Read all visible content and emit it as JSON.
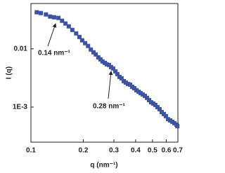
{
  "chart_data": {
    "type": "scatter",
    "x_label": "q (nm⁻¹)",
    "y_label": "I (q)",
    "annotations": [
      "0.14 nm⁻¹",
      "0.28 nm⁻¹"
    ],
    "xscale": "log",
    "yscale": "log",
    "xlim": [
      0.1,
      0.7
    ],
    "ylim": [
      0.00025,
      0.06
    ],
    "xticks": [
      0.1,
      0.2,
      0.3,
      0.4,
      0.5,
      0.6,
      0.7
    ],
    "yticks": [
      0.01,
      {
        "value": 0.001,
        "label": "1E-3"
      }
    ],
    "series": [
      {
        "color": "#3a52a8",
        "x": [
          0.108,
          0.114,
          0.122,
          0.129,
          0.136,
          0.144,
          0.151,
          0.158,
          0.165,
          0.173,
          0.182,
          0.19,
          0.197,
          0.205,
          0.213,
          0.221,
          0.229,
          0.236,
          0.244,
          0.251,
          0.258,
          0.266,
          0.273,
          0.281,
          0.289,
          0.297,
          0.306,
          0.314,
          0.323,
          0.332,
          0.342,
          0.351,
          0.361,
          0.372,
          0.382,
          0.393,
          0.404,
          0.416,
          0.427,
          0.439,
          0.452,
          0.465,
          0.478,
          0.491,
          0.505,
          0.519,
          0.534,
          0.549,
          0.565,
          0.581,
          0.597,
          0.614,
          0.632,
          0.65,
          0.668,
          0.687,
          0.695
        ],
        "values": [
          0.0424,
          0.0411,
          0.0389,
          0.0358,
          0.0348,
          0.0339,
          0.0303,
          0.0272,
          0.0243,
          0.0211,
          0.0184,
          0.016,
          0.014,
          0.0125,
          0.0112,
          0.00972,
          0.00871,
          0.00801,
          0.00716,
          0.00659,
          0.00607,
          0.00574,
          0.00543,
          0.00528,
          0.00486,
          0.0046,
          0.00411,
          0.00368,
          0.0033,
          0.00312,
          0.00279,
          0.00264,
          0.0025,
          0.00243,
          0.00223,
          0.00211,
          0.00195,
          0.00184,
          0.00174,
          0.00165,
          0.00156,
          0.00144,
          0.00132,
          0.00121,
          0.00115,
          0.00109,
          0.001,
          0.00092,
          0.00082,
          0.00076,
          0.0007,
          0.00062,
          0.00059,
          0.00056,
          0.00053,
          0.0005,
          0.00047
        ]
      }
    ]
  }
}
